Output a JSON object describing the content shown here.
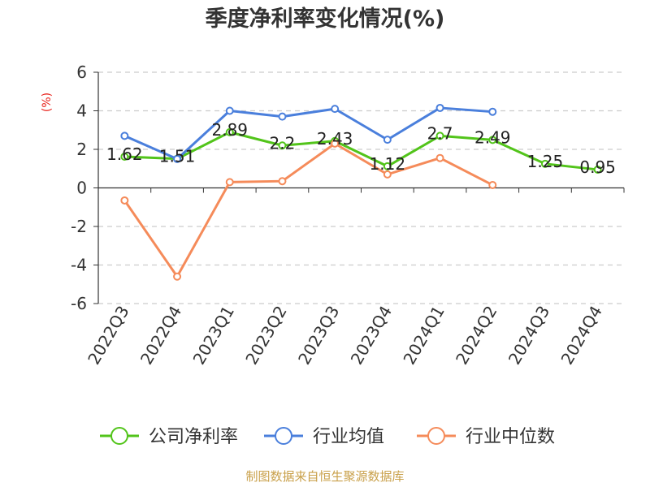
{
  "chart_data": {
    "type": "line",
    "title": "季度净利率变化情况(%)",
    "unit_label": "(%)",
    "categories": [
      "2022Q3",
      "2022Q4",
      "2023Q1",
      "2023Q2",
      "2023Q3",
      "2023Q4",
      "2024Q1",
      "2024Q2",
      "2024Q3",
      "2024Q4"
    ],
    "ylim": [
      -6,
      6
    ],
    "yticks": [
      "6",
      "4",
      "2",
      "0",
      "-2",
      "-4",
      "-6"
    ],
    "grid": true,
    "legend_position": "bottom",
    "series": [
      {
        "name": "公司净利率",
        "color": "#52c41a",
        "values": [
          1.62,
          1.51,
          2.89,
          2.2,
          2.43,
          1.12,
          2.7,
          2.49,
          1.25,
          0.95
        ],
        "labels": [
          "1.62",
          "1.51",
          "2.89",
          "2.2",
          "2.43",
          "1.12",
          "2.7",
          "2.49",
          "1.25",
          "0.95"
        ]
      },
      {
        "name": "行业均值",
        "color": "#4a7fdc",
        "values": [
          2.7,
          1.5,
          4.0,
          3.7,
          4.1,
          2.5,
          4.15,
          3.95,
          null,
          null
        ]
      },
      {
        "name": "行业中位数",
        "color": "#f58b5a",
        "values": [
          -0.65,
          -4.6,
          0.3,
          0.35,
          2.3,
          0.7,
          1.55,
          0.15,
          null,
          null
        ]
      }
    ]
  },
  "footer": {
    "source": "制图数据来自恒生聚源数据库"
  }
}
